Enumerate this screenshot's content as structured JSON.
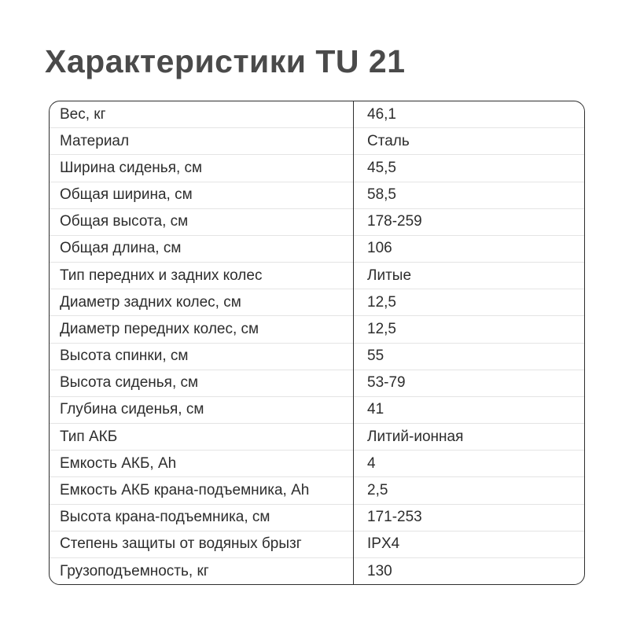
{
  "page": {
    "title": "Характеристики TU 21"
  },
  "colors": {
    "title": "#4a4a4a",
    "text": "#2d2d2d",
    "outer_border": "#2e2e2e",
    "column_divider": "#2e2e2e",
    "row_divider": "#e4e4e4",
    "background": "#ffffff"
  },
  "table": {
    "rows": [
      {
        "label": "Вес, кг",
        "value": "46,1"
      },
      {
        "label": "Материал",
        "value": "Сталь"
      },
      {
        "label": "Ширина сиденья, см",
        "value": "45,5"
      },
      {
        "label": "Общая ширина, см",
        "value": "58,5"
      },
      {
        "label": "Общая высота, см",
        "value": "178-259"
      },
      {
        "label": "Общая длина, см",
        "value": "106"
      },
      {
        "label": "Тип передних и задних колес",
        "value": "Литые"
      },
      {
        "label": "Диаметр задних колес, см",
        "value": "12,5"
      },
      {
        "label": "Диаметр передних колес, см",
        "value": "12,5"
      },
      {
        "label": "Высота спинки, см",
        "value": "55"
      },
      {
        "label": "Высота сиденья, см",
        "value": "53-79"
      },
      {
        "label": "Глубина сиденья, см",
        "value": "41"
      },
      {
        "label": "Тип АКБ",
        "value": "Литий-ионная"
      },
      {
        "label": "Емкость АКБ, Ah",
        "value": "4"
      },
      {
        "label": "Емкость АКБ крана-подъемника, Ah",
        "value": "2,5"
      },
      {
        "label": "Высота крана-подъемника, см",
        "value": "171-253"
      },
      {
        "label": "Степень защиты от водяных брызг",
        "value": "IPX4"
      },
      {
        "label": "Грузоподъемность, кг",
        "value": "130"
      }
    ]
  }
}
